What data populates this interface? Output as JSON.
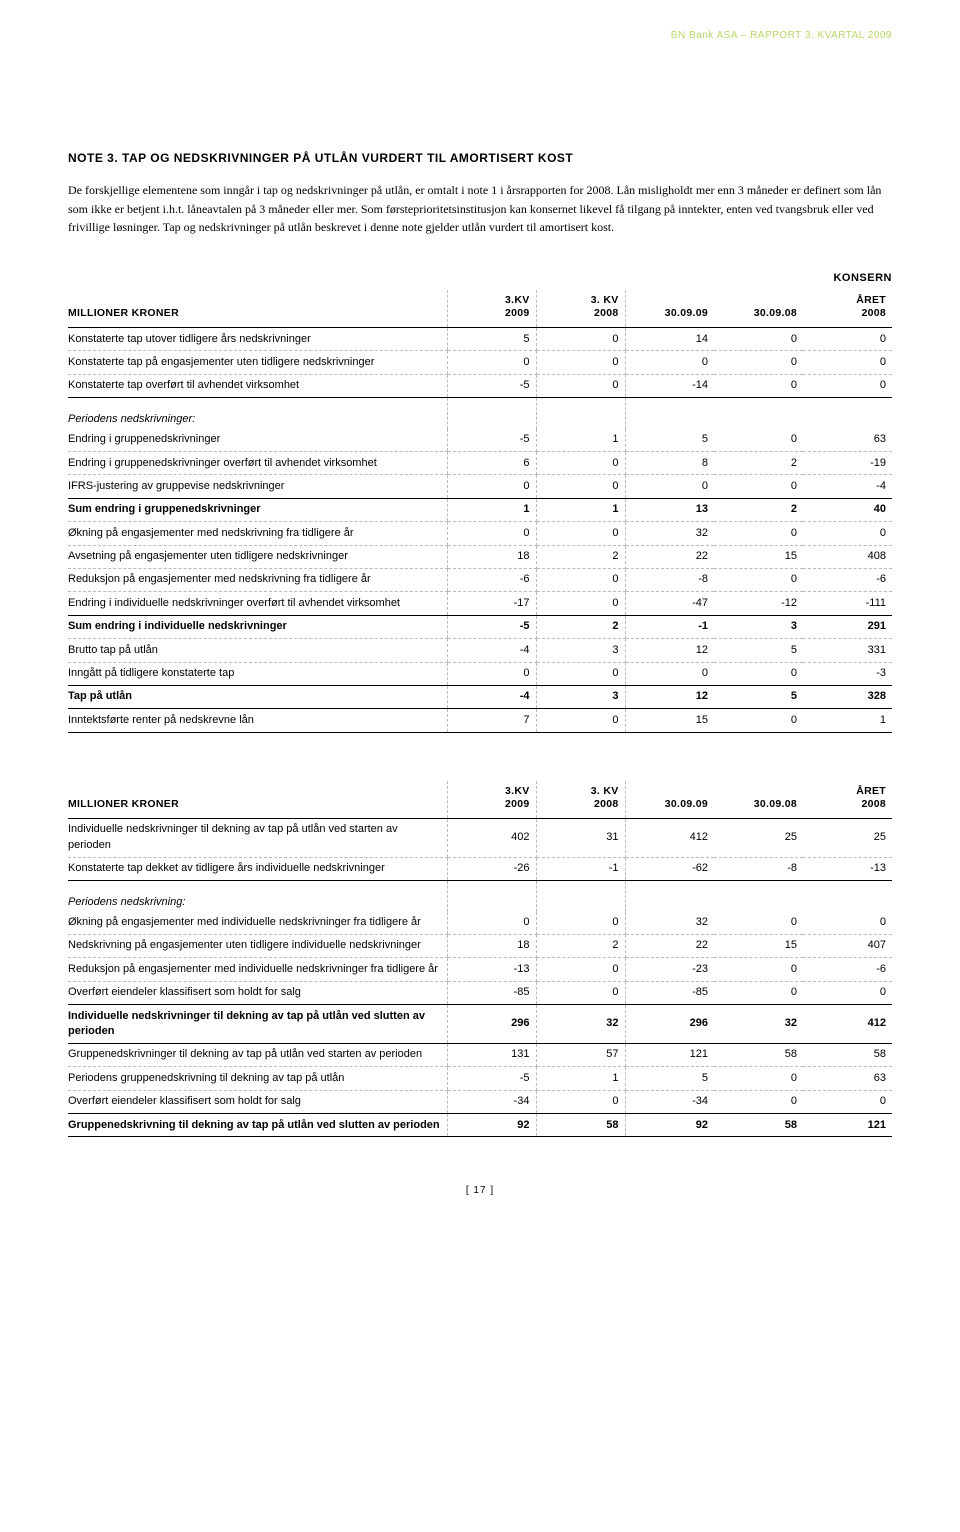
{
  "doc_header": "BN Bank ASA – RAPPORT 3. KVARTAL 2009",
  "note_title": "NOTE 3. TAP OG NEDSKRIVNINGER PÅ UTLÅN VURDERT TIL AMORTISERT KOST",
  "note_body": "De forskjellige elementene som inngår i tap og nedskrivninger på utlån, er omtalt i note 1 i årsrapporten for 2008. Lån misligholdt mer enn 3 måneder er definert som lån som ikke er betjent i.h.t. låneavtalen på 3 måneder eller mer. Som førsteprioritetsinstitusjon kan konsernet likevel få tilgang på inntekter, enten ved tvangsbruk eller ved frivillige løsninger. Tap og nedskrivninger på utlån beskrevet i denne note gjelder utlån vurdert til amortisert kost.",
  "konsern_label": "KONSERN",
  "headers": {
    "c0": "MILLIONER KRONER",
    "c1a": "3.KV",
    "c1b": "2009",
    "c2a": "3. KV",
    "c2b": "2008",
    "c3": "30.09.09",
    "c4": "30.09.08",
    "c5a": "ÅRET",
    "c5b": "2008"
  },
  "table1": [
    {
      "label": "Konstaterte tap utover tidligere års nedskrivninger",
      "v": [
        "5",
        "0",
        "14",
        "0",
        "0"
      ]
    },
    {
      "label": "Konstaterte tap på engasjementer uten tidligere nedskrivninger",
      "v": [
        "0",
        "0",
        "0",
        "0",
        "0"
      ]
    },
    {
      "label": "Konstaterte tap overført til avhendet virksomhet",
      "v": [
        "-5",
        "0",
        "-14",
        "0",
        "0"
      ],
      "solid": true
    },
    {
      "label": "Periodens nedskrivninger:",
      "gap": true,
      "italic": true
    },
    {
      "label": "Endring i gruppenedskrivninger",
      "v": [
        "-5",
        "1",
        "5",
        "0",
        "63"
      ]
    },
    {
      "label": "Endring i gruppenedskrivninger overført til avhendet virksomhet",
      "v": [
        "6",
        "0",
        "8",
        "2",
        "-19"
      ]
    },
    {
      "label": "IFRS-justering av gruppevise nedskrivninger",
      "v": [
        "0",
        "0",
        "0",
        "0",
        "-4"
      ],
      "solid": true
    },
    {
      "label": "Sum endring i gruppenedskrivninger",
      "v": [
        "1",
        "1",
        "13",
        "2",
        "40"
      ],
      "bold": true
    },
    {
      "label": "Økning på engasjementer med nedskrivning fra tidligere år",
      "v": [
        "0",
        "0",
        "32",
        "0",
        "0"
      ]
    },
    {
      "label": "Avsetning på engasjementer uten tidligere nedskrivninger",
      "v": [
        "18",
        "2",
        "22",
        "15",
        "408"
      ]
    },
    {
      "label": "Reduksjon på engasjementer med nedskrivning fra tidligere år",
      "v": [
        "-6",
        "0",
        "-8",
        "0",
        "-6"
      ]
    },
    {
      "label": "Endring i individuelle nedskrivninger overført til avhendet virksomhet",
      "v": [
        "-17",
        "0",
        "-47",
        "-12",
        "-111"
      ],
      "solid": true
    },
    {
      "label": "Sum endring i individuelle nedskrivninger",
      "v": [
        "-5",
        "2",
        "-1",
        "3",
        "291"
      ],
      "bold": true
    },
    {
      "label": "Brutto tap på utlån",
      "v": [
        "-4",
        "3",
        "12",
        "5",
        "331"
      ]
    },
    {
      "label": "Inngått på tidligere konstaterte tap",
      "v": [
        "0",
        "0",
        "0",
        "0",
        "-3"
      ],
      "solid": true
    },
    {
      "label": "Tap på utlån",
      "v": [
        "-4",
        "3",
        "12",
        "5",
        "328"
      ],
      "bold": true,
      "solid": true
    },
    {
      "label": "Inntektsførte renter på nedskrevne lån",
      "v": [
        "7",
        "0",
        "15",
        "0",
        "1"
      ],
      "solid": true
    }
  ],
  "table2": [
    {
      "label": "Individuelle nedskrivninger til dekning av tap på utlån ved starten av perioden",
      "v": [
        "402",
        "31",
        "412",
        "25",
        "25"
      ]
    },
    {
      "label": "Konstaterte tap dekket av tidligere års individuelle nedskrivninger",
      "v": [
        "-26",
        "-1",
        "-62",
        "-8",
        "-13"
      ],
      "solid": true
    },
    {
      "label": "Periodens nedskrivning:",
      "gap": true,
      "italic": true
    },
    {
      "label": "Økning på engasjementer med individuelle nedskrivninger fra tidligere år",
      "v": [
        "0",
        "0",
        "32",
        "0",
        "0"
      ]
    },
    {
      "label": "Nedskrivning på engasjementer uten tidligere individuelle nedskrivninger",
      "v": [
        "18",
        "2",
        "22",
        "15",
        "407"
      ]
    },
    {
      "label": "Reduksjon på engasjementer med individuelle nedskrivninger fra tidligere år",
      "v": [
        "-13",
        "0",
        "-23",
        "0",
        "-6"
      ]
    },
    {
      "label": "Overført eiendeler klassifisert som holdt for salg",
      "v": [
        "-85",
        "0",
        "-85",
        "0",
        "0"
      ],
      "solid": true
    },
    {
      "label": "Individuelle nedskrivninger til dekning av tap på utlån ved slutten av perioden",
      "v": [
        "296",
        "32",
        "296",
        "32",
        "412"
      ],
      "bold": true,
      "solid": true
    },
    {
      "label": "Gruppenedskrivninger til dekning av tap på utlån ved starten av perioden",
      "v": [
        "131",
        "57",
        "121",
        "58",
        "58"
      ]
    },
    {
      "label": "Periodens gruppenedskrivning til dekning av tap på utlån",
      "v": [
        "-5",
        "1",
        "5",
        "0",
        "63"
      ]
    },
    {
      "label": "Overført eiendeler klassifisert som holdt for salg",
      "v": [
        "-34",
        "0",
        "-34",
        "0",
        "0"
      ],
      "solid": true
    },
    {
      "label": "Gruppenedskrivning til dekning av tap på utlån ved slutten av perioden",
      "v": [
        "92",
        "58",
        "92",
        "58",
        "121"
      ],
      "bold": true,
      "solid": true
    }
  ],
  "page_num": "[ 17 ]"
}
